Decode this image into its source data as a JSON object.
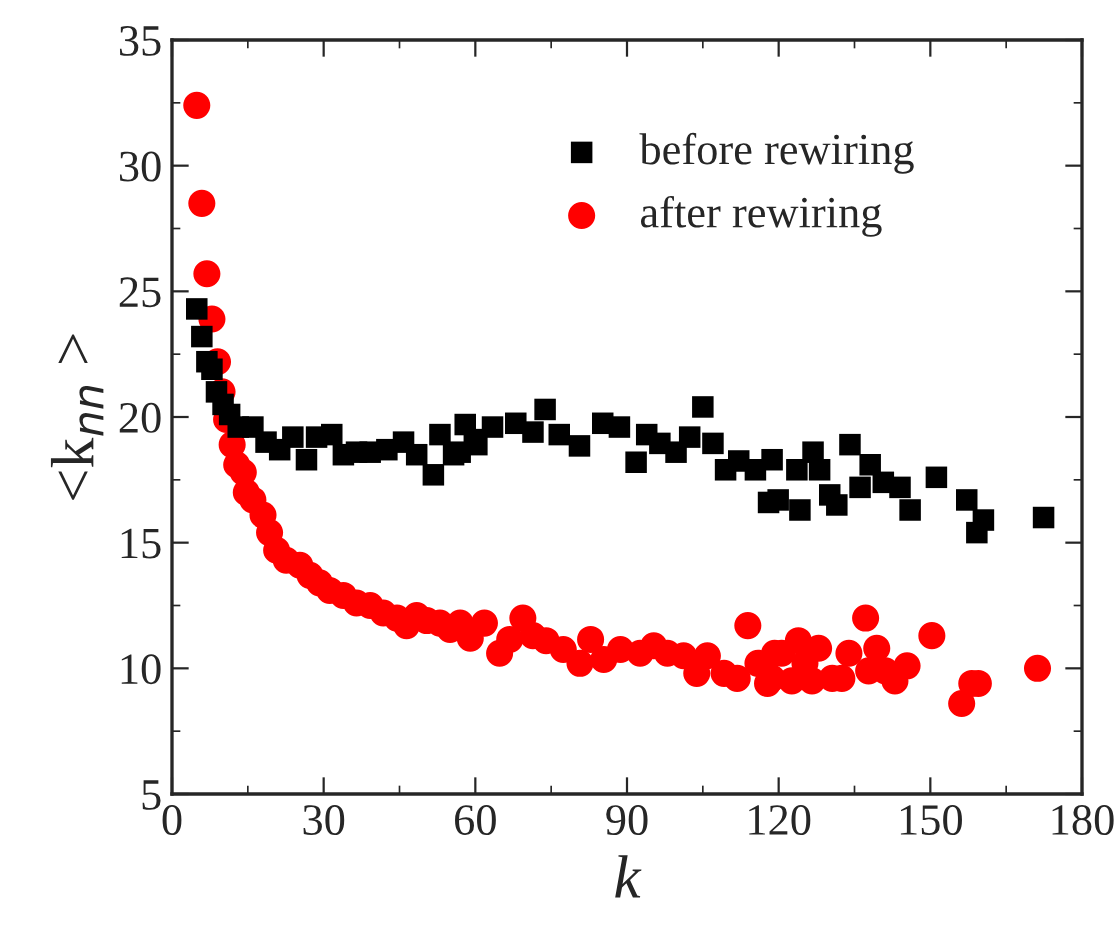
{
  "chart_data": {
    "type": "scatter",
    "xlabel": "k",
    "ylabel": "<k$_{nn}$ >",
    "xlim": [
      0,
      180
    ],
    "ylim": [
      5,
      35
    ],
    "xticks": [
      0,
      30,
      60,
      90,
      120,
      150,
      180
    ],
    "yticks": [
      5,
      10,
      15,
      20,
      25,
      30,
      35
    ],
    "grid": false,
    "legend": "top right",
    "series": [
      {
        "name": "before rewiring",
        "color": "#000000",
        "marker": "square",
        "x": [
          4.9,
          5.9,
          6.9,
          7.9,
          8.8,
          10.1,
          11.4,
          13.1,
          16,
          18.6,
          21.3,
          23.9,
          26.6,
          28.6,
          31.6,
          33.9,
          36.5,
          39.2,
          42.5,
          45.8,
          48.4,
          51.7,
          53,
          55.7,
          57,
          58,
          59.8,
          60.3,
          63.4,
          68,
          71.4,
          73.8,
          76.6,
          80.6,
          85.2,
          88.5,
          91.8,
          93.9,
          96.5,
          99.7,
          102.4,
          105,
          107,
          109.5,
          112.1,
          115.4,
          118,
          118.7,
          119.9,
          123.6,
          124.2,
          126.8,
          128.1,
          130.1,
          131.5,
          134.1,
          136.1,
          138.1,
          140.7,
          144,
          146,
          151.2,
          157.2,
          159.2,
          160.5,
          172.4
        ],
        "values": [
          24.3,
          23.2,
          22.2,
          21.9,
          21.0,
          20.5,
          20.1,
          19.6,
          19.6,
          19.0,
          18.7,
          19.2,
          18.3,
          19.2,
          19.3,
          18.5,
          18.6,
          18.6,
          18.7,
          19.0,
          18.5,
          17.7,
          19.3,
          18.5,
          18.6,
          19.7,
          19.1,
          18.9,
          19.6,
          19.75,
          19.4,
          20.3,
          19.3,
          18.85,
          19.75,
          19.6,
          18.2,
          19.3,
          18.95,
          18.6,
          19.2,
          20.4,
          18.95,
          17.9,
          18.25,
          17.9,
          16.6,
          18.3,
          16.7,
          17.9,
          16.3,
          18.6,
          17.9,
          16.9,
          16.5,
          18.9,
          17.2,
          18.1,
          17.4,
          17.2,
          16.3,
          17.6,
          16.7,
          15.4,
          15.9,
          16.0
        ]
      },
      {
        "name": "after rewiring",
        "color": "#ff0000",
        "marker": "circle",
        "x": [
          4.9,
          5.9,
          6.9,
          7.9,
          9,
          9.9,
          10.8,
          11.9,
          12.8,
          14.1,
          14.7,
          16,
          18,
          19.3,
          20.7,
          22.6,
          25.3,
          27.3,
          29.2,
          31.2,
          33.9,
          36.5,
          39.2,
          41.8,
          44.5,
          46.4,
          48.4,
          50.4,
          53,
          55,
          57,
          59,
          61.8,
          64.8,
          66.8,
          69.4,
          71.4,
          74,
          77.4,
          80.7,
          82.8,
          85.4,
          88.7,
          92.6,
          95.3,
          98,
          101.2,
          103.8,
          105.9,
          109.2,
          111.8,
          113.9,
          115.9,
          117.8,
          118.7,
          119.2,
          120.6,
          122.6,
          123.9,
          125.2,
          126.6,
          127.9,
          130.6,
          132.5,
          133.9,
          137.2,
          137.8,
          139.4,
          141.1,
          143,
          145.4,
          150.3,
          156.2,
          158.2,
          159.5,
          171.2
        ],
        "values": [
          32.4,
          28.5,
          25.7,
          23.9,
          22.2,
          21.0,
          19.9,
          18.9,
          18.1,
          17.8,
          17.0,
          16.7,
          16.1,
          15.4,
          14.7,
          14.3,
          14.1,
          13.7,
          13.4,
          13.1,
          12.9,
          12.6,
          12.5,
          12.2,
          12.0,
          11.7,
          12.1,
          11.9,
          11.8,
          11.55,
          11.8,
          11.2,
          11.8,
          10.6,
          11.15,
          12.0,
          11.3,
          11.1,
          10.75,
          10.2,
          11.15,
          10.35,
          10.75,
          10.6,
          10.9,
          10.6,
          10.5,
          9.8,
          10.5,
          9.8,
          9.6,
          11.7,
          10.2,
          9.4,
          9.6,
          10.6,
          10.6,
          9.5,
          11.1,
          10.2,
          9.5,
          10.8,
          9.6,
          9.6,
          10.6,
          12.0,
          9.9,
          10.8,
          9.9,
          9.5,
          10.1,
          11.3,
          8.6,
          9.4,
          9.4,
          10.0
        ]
      }
    ]
  }
}
